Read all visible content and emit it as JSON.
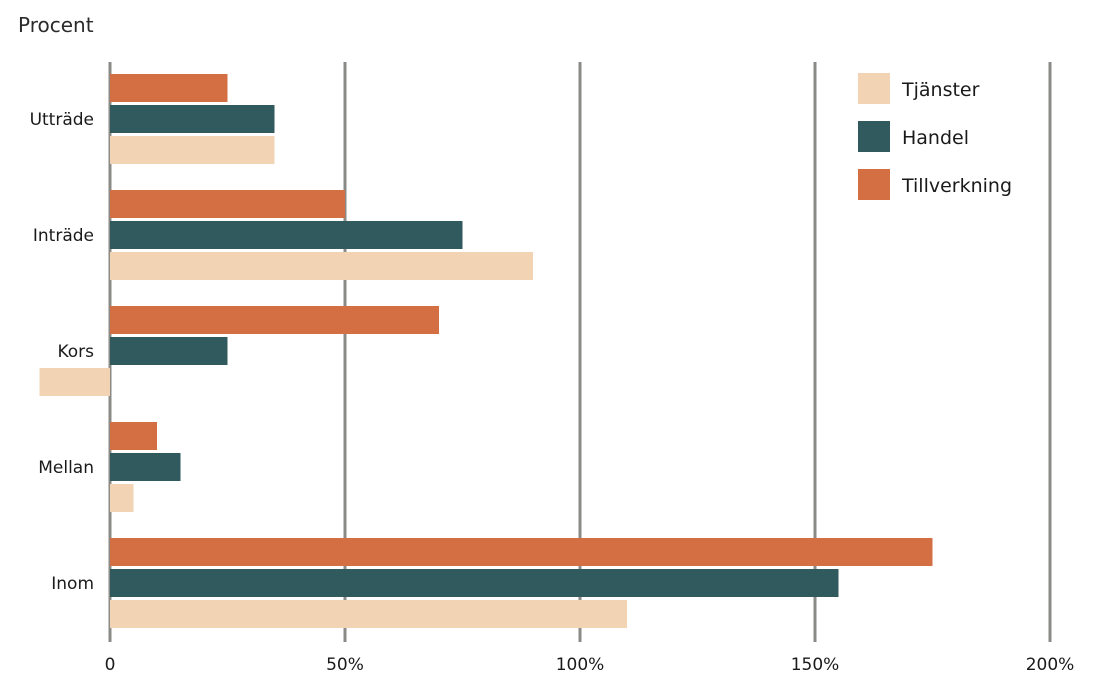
{
  "chart_data": {
    "type": "bar",
    "orientation": "horizontal",
    "unit_label": "Procent",
    "categories": [
      "Utträde",
      "Inträde",
      "Kors",
      "Mellan",
      "Inom"
    ],
    "series": [
      {
        "name": "Tillverkning",
        "color": "#d46f43",
        "values": [
          25,
          50,
          70,
          10,
          175
        ]
      },
      {
        "name": "Handel",
        "color": "#305a5e",
        "values": [
          35,
          75,
          25,
          15,
          155
        ]
      },
      {
        "name": "Tjänster",
        "color": "#f2d4b4",
        "values": [
          35,
          90,
          -15,
          5,
          110
        ]
      }
    ],
    "legend_order": [
      "Tjänster",
      "Handel",
      "Tillverkning"
    ],
    "legend_position": "top-right",
    "xlim": [
      0,
      200
    ],
    "xticks": [
      0,
      50,
      100,
      150,
      200
    ],
    "xtick_labels": [
      "0",
      "50%",
      "100%",
      "150%",
      "200%"
    ],
    "grid": "vertical",
    "grid_color": "#8a8a86"
  }
}
